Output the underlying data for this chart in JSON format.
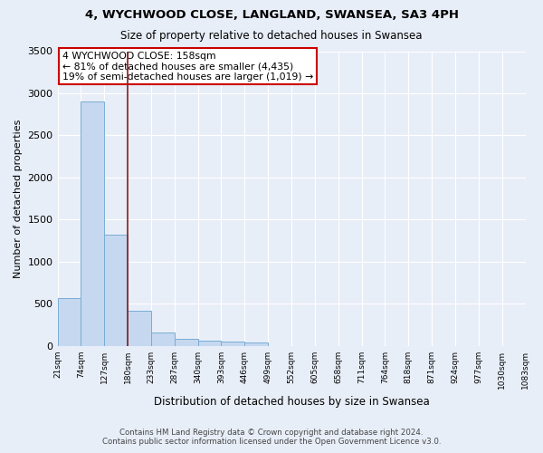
{
  "title": "4, WYCHWOOD CLOSE, LANGLAND, SWANSEA, SA3 4PH",
  "subtitle": "Size of property relative to detached houses in Swansea",
  "xlabel": "Distribution of detached houses by size in Swansea",
  "ylabel": "Number of detached properties",
  "footer_line1": "Contains HM Land Registry data © Crown copyright and database right 2024.",
  "footer_line2": "Contains public sector information licensed under the Open Government Licence v3.0.",
  "bins": [
    "21sqm",
    "74sqm",
    "127sqm",
    "180sqm",
    "233sqm",
    "287sqm",
    "340sqm",
    "393sqm",
    "446sqm",
    "499sqm",
    "552sqm",
    "605sqm",
    "658sqm",
    "711sqm",
    "764sqm",
    "818sqm",
    "871sqm",
    "924sqm",
    "977sqm",
    "1030sqm",
    "1083sqm"
  ],
  "values": [
    570,
    2900,
    1320,
    415,
    155,
    80,
    60,
    50,
    40,
    0,
    0,
    0,
    0,
    0,
    0,
    0,
    0,
    0,
    0,
    0
  ],
  "bar_color": "#c5d8f0",
  "bar_edge_color": "#7aadd4",
  "background_color": "#e8eef8",
  "grid_color": "#ffffff",
  "property_line_color": "#8b1a1a",
  "annotation_text": "4 WYCHWOOD CLOSE: 158sqm\n← 81% of detached houses are smaller (4,435)\n19% of semi-detached houses are larger (1,019) →",
  "annotation_box_color": "#ffffff",
  "annotation_box_edge": "#cc0000",
  "ylim": [
    0,
    3500
  ],
  "yticks": [
    0,
    500,
    1000,
    1500,
    2000,
    2500,
    3000,
    3500
  ]
}
